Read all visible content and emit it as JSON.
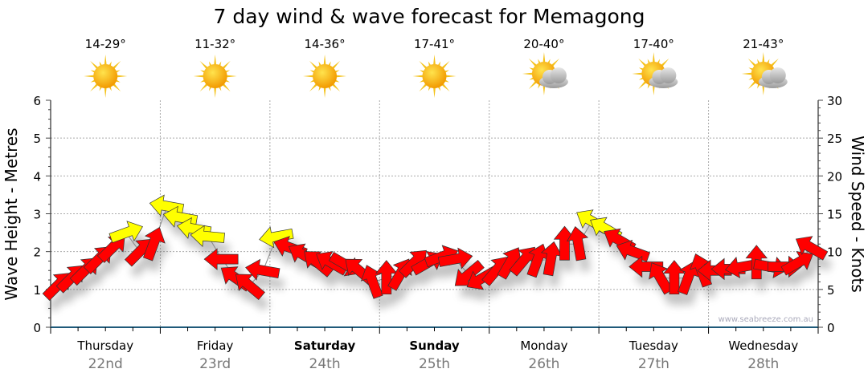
{
  "chart_data": {
    "type": "scatter",
    "title": "7 day wind & wave forecast for Memagong",
    "ylabel_left": "Wave Height - Metres",
    "ylabel_right": "Wind Speed - Knots",
    "ylim_left": [
      0,
      6
    ],
    "ylim_right": [
      0,
      30
    ],
    "yticks_left": [
      "0",
      "1",
      "2",
      "3",
      "4",
      "5",
      "6"
    ],
    "yticks_right": [
      "0",
      "5",
      "10",
      "15",
      "20",
      "25",
      "30"
    ],
    "grid": true,
    "watermark": "www.seabreeze.com.au",
    "yellow_threshold_knots": 12,
    "colors": {
      "strong": "#ffff00",
      "normal": "#ff0000",
      "axis": "#1f5a7a"
    },
    "days": [
      {
        "name": "Thursday",
        "date": "22nd",
        "temp": "14-29°",
        "icon": "sun-icon",
        "bold": false
      },
      {
        "name": "Friday",
        "date": "23rd",
        "temp": "11-32°",
        "icon": "sun-icon",
        "bold": false
      },
      {
        "name": "Saturday",
        "date": "24th",
        "temp": "14-36°",
        "icon": "sun-icon",
        "bold": true
      },
      {
        "name": "Sunday",
        "date": "25th",
        "temp": "17-41°",
        "icon": "sun-icon",
        "bold": true
      },
      {
        "name": "Monday",
        "date": "26th",
        "temp": "20-40°",
        "icon": "partly-cloudy-icon",
        "bold": false
      },
      {
        "name": "Tuesday",
        "date": "27th",
        "temp": "17-40°",
        "icon": "partly-cloudy-icon",
        "bold": false
      },
      {
        "name": "Wednesday",
        "date": "28th",
        "temp": "21-43°",
        "icon": "partly-cloudy-icon",
        "bold": false
      }
    ],
    "wind_interval_hours": 3,
    "wind_knots": [
      5.5,
      6.5,
      7.5,
      9,
      10.5,
      12.5,
      10,
      11,
      16,
      14.5,
      13,
      12,
      9,
      6.5,
      5.5,
      7.5,
      12,
      10.5,
      9.5,
      8.5,
      8.5,
      8.3,
      7.5,
      6,
      6.5,
      7,
      8.5,
      8.5,
      9.3,
      9,
      7,
      6.5,
      7.5,
      8.5,
      8.8,
      8.8,
      9,
      11,
      11,
      14,
      13,
      11.5,
      10,
      8,
      6.5,
      6.5,
      6.5,
      7.5,
      7.5,
      7.7,
      8,
      8.5,
      8,
      8,
      8.5,
      10.5
    ],
    "wind_from_deg": [
      225,
      225,
      225,
      225,
      225,
      250,
      225,
      200,
      100,
      100,
      100,
      95,
      90,
      125,
      130,
      100,
      80,
      110,
      120,
      130,
      120,
      300,
      130,
      160,
      180,
      210,
      225,
      240,
      250,
      260,
      50,
      60,
      220,
      210,
      220,
      200,
      190,
      180,
      170,
      120,
      120,
      120,
      110,
      90,
      150,
      180,
      200,
      160,
      90,
      90,
      80,
      180,
      280,
      270,
      240,
      120
    ]
  }
}
